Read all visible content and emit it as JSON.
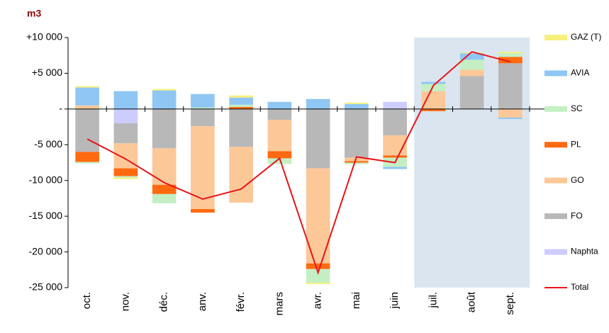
{
  "chart_data": {
    "type": "bar",
    "stacked": true,
    "y_label": "m3",
    "categories": [
      "oct.",
      "nov.",
      "déc.",
      "anv.",
      "févr.",
      "mars",
      "avr.",
      "mai",
      "juin",
      "juil.",
      "août",
      "sept."
    ],
    "series": [
      {
        "name": "GAZ (T)",
        "color": "#f7f07c",
        "values": [
          200,
          -200,
          200,
          0,
          300,
          0,
          -200,
          200,
          0,
          0,
          100,
          200
        ]
      },
      {
        "name": "AVIA",
        "color": "#8fc6f3",
        "values": [
          2500,
          2500,
          2600,
          1900,
          1000,
          1000,
          1400,
          700,
          -300,
          300,
          900,
          -200
        ]
      },
      {
        "name": "SC",
        "color": "#c4efc4",
        "values": [
          -200,
          -200,
          -1300,
          200,
          300,
          -800,
          -1900,
          -200,
          -1300,
          1000,
          1400,
          500
        ]
      },
      {
        "name": "PL",
        "color": "#ff6a10",
        "values": [
          -1400,
          -1100,
          -1300,
          -500,
          300,
          -1000,
          -800,
          -200,
          -300,
          -300,
          0,
          900
        ]
      },
      {
        "name": "GO",
        "color": "#fcc898",
        "values": [
          500,
          -3500,
          -5100,
          -11600,
          -7800,
          -4400,
          -13300,
          -500,
          -2800,
          2500,
          900,
          -1200
        ]
      },
      {
        "name": "FO",
        "color": "#b8b8b8",
        "values": [
          -6000,
          -2800,
          -5500,
          -2400,
          -5300,
          -1500,
          -8300,
          -6800,
          -3700,
          0,
          4600,
          6400
        ]
      },
      {
        "name": "Naphta",
        "color": "#ccccff",
        "values": [
          0,
          -2000,
          0,
          0,
          0,
          0,
          0,
          0,
          1000,
          0,
          0,
          0
        ]
      },
      {
        "name": "Total",
        "type": "line",
        "color": "#e8141a",
        "values": [
          -4200,
          -7000,
          -10300,
          -12600,
          -11200,
          -6900,
          -22900,
          -6700,
          -7500,
          3300,
          8000,
          6600
        ]
      }
    ],
    "ylim": [
      -25000,
      10000
    ],
    "yticks": [
      {
        "value": 10000,
        "label": "+10 000"
      },
      {
        "value": 5000,
        "label": "+5 000"
      },
      {
        "value": 0,
        "label": "-"
      },
      {
        "value": -5000,
        "label": "-5 000"
      },
      {
        "value": -10000,
        "label": "-10 000"
      },
      {
        "value": -15000,
        "label": "-15 000"
      },
      {
        "value": -20000,
        "label": "-20 000"
      },
      {
        "value": -25000,
        "label": "-25 000"
      }
    ],
    "grid": false,
    "legend": "right",
    "highlight": {
      "start": 9,
      "end": 11,
      "color": "#dbe5f0"
    }
  }
}
